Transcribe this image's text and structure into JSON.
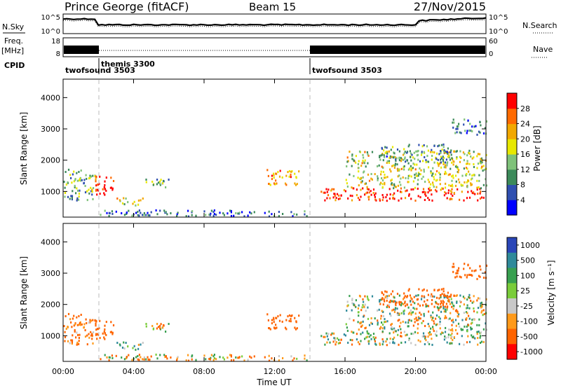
{
  "header": {
    "station": "Prince George (fitACF)",
    "beam": "Beam 15",
    "date": "27/Nov/2015"
  },
  "strips": {
    "nsky_label": "N.Sky",
    "nsearch_label": "N.Search",
    "noise_ticks": [
      "10^5",
      "10^0"
    ],
    "freq_label_1": "Freq.",
    "freq_label_2": "[MHz]",
    "freq_ticks": [
      "18",
      "8"
    ],
    "nave_label": "Nave",
    "nave_ticks": [
      "60",
      "0"
    ],
    "cpid_label": "CPID",
    "programs": [
      {
        "name": "twofsound 3503",
        "start_h": 0.0
      },
      {
        "name": "themis 3300",
        "start_h": 2.0
      },
      {
        "name": "twofsound 3503",
        "start_h": 14.0
      }
    ]
  },
  "power_panel": {
    "ylabel": "Slant Range [km]",
    "yticks": [
      "1000",
      "2000",
      "3000",
      "4000"
    ],
    "colorbar_label": "Power [dB]",
    "colorbar_ticks": [
      "4",
      "8",
      "12",
      "16",
      "20",
      "24",
      "28"
    ],
    "colors": [
      "#0000ff",
      "#2f4fb0",
      "#3c8a5a",
      "#7fc27a",
      "#e8e800",
      "#f2a800",
      "#ff6a00",
      "#ff0000"
    ]
  },
  "velocity_panel": {
    "ylabel": "Slant Range [km]",
    "yticks": [
      "1000",
      "2000",
      "3000",
      "4000"
    ],
    "colorbar_label": "Velocity [m s⁻¹]",
    "colorbar_ticks": [
      "1000",
      "500",
      "100",
      "25",
      "-25",
      "-100",
      "-500",
      "-1000"
    ],
    "colors": [
      "#2a46b8",
      "#2f8a9a",
      "#38a050",
      "#7acc3a",
      "#c8c8c8",
      "#ff9a1a",
      "#ff6400",
      "#ff0000"
    ]
  },
  "xaxis": {
    "label": "Time UT",
    "ticks": [
      "00:00",
      "04:00",
      "08:00",
      "12:00",
      "16:00",
      "20:00",
      "00:00"
    ]
  },
  "chart_data": {
    "type": "heatmap",
    "title": "Prince George (fitACF)  Beam 15  27/Nov/2015",
    "xlabel": "Time UT",
    "ylabel": "Slant Range [km]",
    "xlim_hours": [
      0,
      24
    ],
    "ylim_km": [
      180,
      4590
    ],
    "program_changes_hours": [
      2.0,
      14.0
    ],
    "power_db_range": [
      0,
      30
    ],
    "velocity_range_ms": [
      -1000,
      1000
    ],
    "scatter_regions": [
      {
        "t": [
          0.0,
          1.8
        ],
        "r": [
          700,
          1700
        ],
        "power_db": 12,
        "velocity_ms": -150,
        "note": "dense band"
      },
      {
        "t": [
          1.8,
          2.9
        ],
        "r": [
          800,
          1500
        ],
        "power_db": 28,
        "velocity_ms": -300
      },
      {
        "t": [
          3.0,
          4.5
        ],
        "r": [
          550,
          800
        ],
        "power_db": 16,
        "velocity_ms": 80
      },
      {
        "t": [
          4.5,
          6.0
        ],
        "r": [
          1100,
          1400
        ],
        "power_db": 12,
        "velocity_ms": -100
      },
      {
        "t": [
          11.5,
          13.4
        ],
        "r": [
          1200,
          1700
        ],
        "power_db": 22,
        "velocity_ms": -300
      },
      {
        "t": [
          14.6,
          24.0
        ],
        "r": [
          700,
          1100
        ],
        "power_db": 28,
        "velocity_ms": 0
      },
      {
        "t": [
          16.0,
          24.0
        ],
        "r": [
          1100,
          2300
        ],
        "power_db": 16,
        "velocity_ms": 0
      },
      {
        "t": [
          18.0,
          22.0
        ],
        "r": [
          1900,
          2500
        ],
        "power_db": 10,
        "velocity_ms": -300
      },
      {
        "t": [
          22.0,
          24.0
        ],
        "r": [
          2800,
          3300
        ],
        "power_db": 8,
        "velocity_ms": -300
      },
      {
        "t": [
          2.0,
          14.0
        ],
        "r": [
          200,
          400
        ],
        "power_db": 6,
        "velocity_ms": -50,
        "note": "ground/near-range"
      }
    ]
  }
}
